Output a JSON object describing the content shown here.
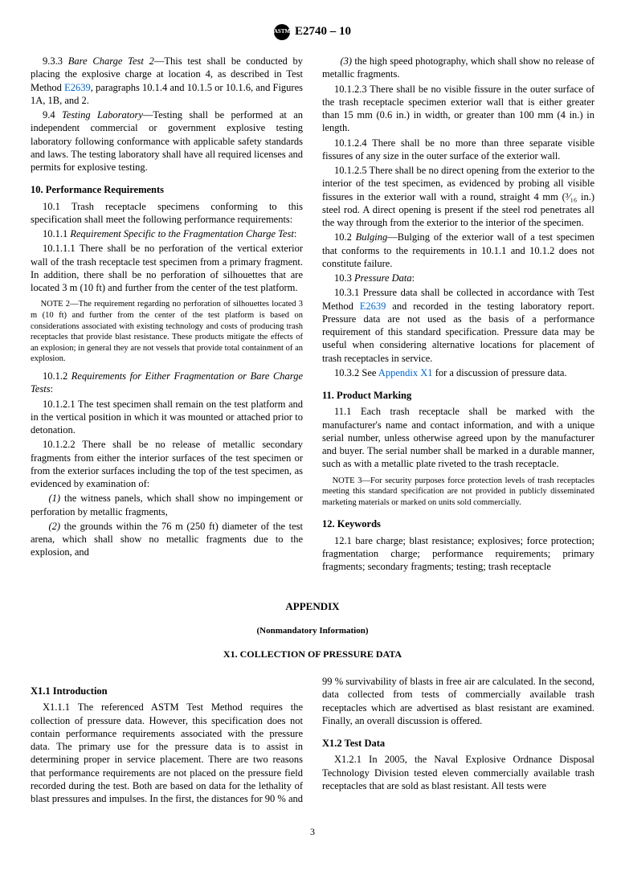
{
  "header": {
    "logo_text": "ASTM",
    "standard": "E2740 – 10"
  },
  "body": {
    "p933": {
      "num": "9.3.3",
      "title": "Bare Charge Test 2",
      "text": "—This test shall be conducted by placing the explosive charge at location 4, as described in Test Method ",
      "ref": "E2639",
      "text2": ", paragraphs 10.1.4 and 10.1.5 or 10.1.6, and Figures 1A, 1B, and 2."
    },
    "p94": {
      "num": "9.4",
      "title": "Testing Laboratory",
      "text": "—Testing shall be performed at an independent commercial or government explosive testing laboratory following conformance with applicable safety standards and laws. The testing laboratory shall have all required licenses and permits for explosive testing."
    },
    "s10": "10. Performance Requirements",
    "p101": {
      "num": "10.1",
      "text": "Trash receptacle specimens conforming to this specification shall meet the following performance requirements:"
    },
    "p1011": {
      "num": "10.1.1",
      "title": "Requirement Specific to the Fragmentation Charge Test",
      "text": ":"
    },
    "p10111": {
      "num": "10.1.1.1",
      "text": "There shall be no perforation of the vertical exterior wall of the trash receptacle test specimen from a primary fragment. In addition, there shall be no perforation of silhouettes that are located 3 m (10 ft) and further from the center of the test platform."
    },
    "note2": {
      "label": "NOTE 2",
      "text": "—The requirement regarding no perforation of silhouettes located 3 m (10 ft) and further from the center of the test platform is based on considerations associated with existing technology and costs of producing trash receptacles that provide blast resistance. These products mitigate the effects of an explosion; in general they are not vessels that provide total containment of an explosion."
    },
    "p1012": {
      "num": "10.1.2",
      "title": "Requirements for Either Fragmentation or Bare Charge Tests",
      "text": ":"
    },
    "p10121": {
      "num": "10.1.2.1",
      "text": "The test specimen shall remain on the test platform and in the vertical position in which it was mounted or attached prior to detonation."
    },
    "p10122": {
      "num": "10.1.2.2",
      "text": "There shall be no release of metallic secondary fragments from either the interior surfaces of the test specimen or from the exterior surfaces including the top of the test specimen, as evidenced by examination of:"
    },
    "sub1": {
      "num": "(1)",
      "text": "the witness panels, which shall show no impingement or perforation by metallic fragments,"
    },
    "sub2": {
      "num": "(2)",
      "text": "the grounds within the 76 m (250 ft) diameter of the test arena, which shall show no metallic fragments due to the explosion, and"
    },
    "sub3": {
      "num": "(3)",
      "text": "the high speed photography, which shall show no release of metallic fragments."
    },
    "p10123": {
      "num": "10.1.2.3",
      "text": "There shall be no visible fissure in the outer surface of the trash receptacle specimen exterior wall that is either greater than 15 mm (0.6 in.) in width, or greater than 100 mm (4 in.) in length."
    },
    "p10124": {
      "num": "10.1.2.4",
      "text": "There shall be no more than three separate visible fissures of any size in the outer surface of the exterior wall."
    },
    "p10125": {
      "num": "10.1.2.5",
      "text": "There shall be no direct opening from the exterior to the interior of the test specimen, as evidenced by probing all visible fissures in the exterior wall with a round, straight 4 mm (³⁄₁₆ in.) steel rod. A direct opening is present if the steel rod penetrates all the way through from the exterior to the interior of the specimen."
    },
    "p102": {
      "num": "10.2",
      "title": "Bulging",
      "text": "—Bulging of the exterior wall of a test specimen that conforms to the requirements in 10.1.1 and 10.1.2 does not constitute failure."
    },
    "p103": {
      "num": "10.3",
      "title": "Pressure Data",
      "text": ":"
    },
    "p1031": {
      "num": "10.3.1",
      "text": "Pressure data shall be collected in accordance with Test Method ",
      "ref": "E2639",
      "text2": " and recorded in the testing laboratory report. Pressure data are not used as the basis of a performance requirement of this standard specification. Pressure data may be useful when considering alternative locations for placement of trash receptacles in service."
    },
    "p1032": {
      "num": "10.3.2",
      "text": "See ",
      "ref": "Appendix X1",
      "text2": " for a discussion of pressure data."
    },
    "s11": "11. Product Marking",
    "p111": {
      "num": "11.1",
      "text": "Each trash receptacle shall be marked with the manufacturer's name and contact information, and with a unique serial number, unless otherwise agreed upon by the manufacturer and buyer. The serial number shall be marked in a durable manner, such as with a metallic plate riveted to the trash receptacle."
    },
    "note3": {
      "label": "NOTE 3",
      "text": "—For security purposes force protection levels of trash receptacles meeting this standard specification are not provided in publicly disseminated marketing materials or marked on units sold commercially."
    },
    "s12": "12. Keywords",
    "p121": {
      "num": "12.1",
      "text": "bare charge; blast resistance; explosives; force protection; fragmentation charge; performance requirements; primary fragments; secondary fragments; testing; trash receptacle"
    }
  },
  "appendix": {
    "title": "APPENDIX",
    "sub": "(Nonmandatory Information)",
    "section": "X1. COLLECTION OF PRESSURE DATA",
    "x11_title": "X1.1 Introduction",
    "x111": {
      "num": "X1.1.1",
      "text": "The referenced ASTM Test Method requires the collection of pressure data. However, this specification does not contain performance requirements associated with the pressure data. The primary use for the pressure data is to assist in determining proper in service placement. There are two reasons that performance requirements are not placed on the pressure field recorded during the test. Both are based on data for the lethality of blast pressures and impulses. In the first, the distances for 90 % and 99 % survivability of blasts in free air are calculated. In the second, data collected from tests of commercially available trash receptacles which are advertised as blast resistant are examined. Finally, an overall discussion is offered."
    },
    "x12_title": "X1.2 Test Data",
    "x121": {
      "num": "X1.2.1",
      "text": "In 2005, the Naval Explosive Ordnance Disposal Technology Division tested eleven commercially available trash receptacles that are sold as blast resistant. All tests were"
    }
  },
  "page_number": "3"
}
